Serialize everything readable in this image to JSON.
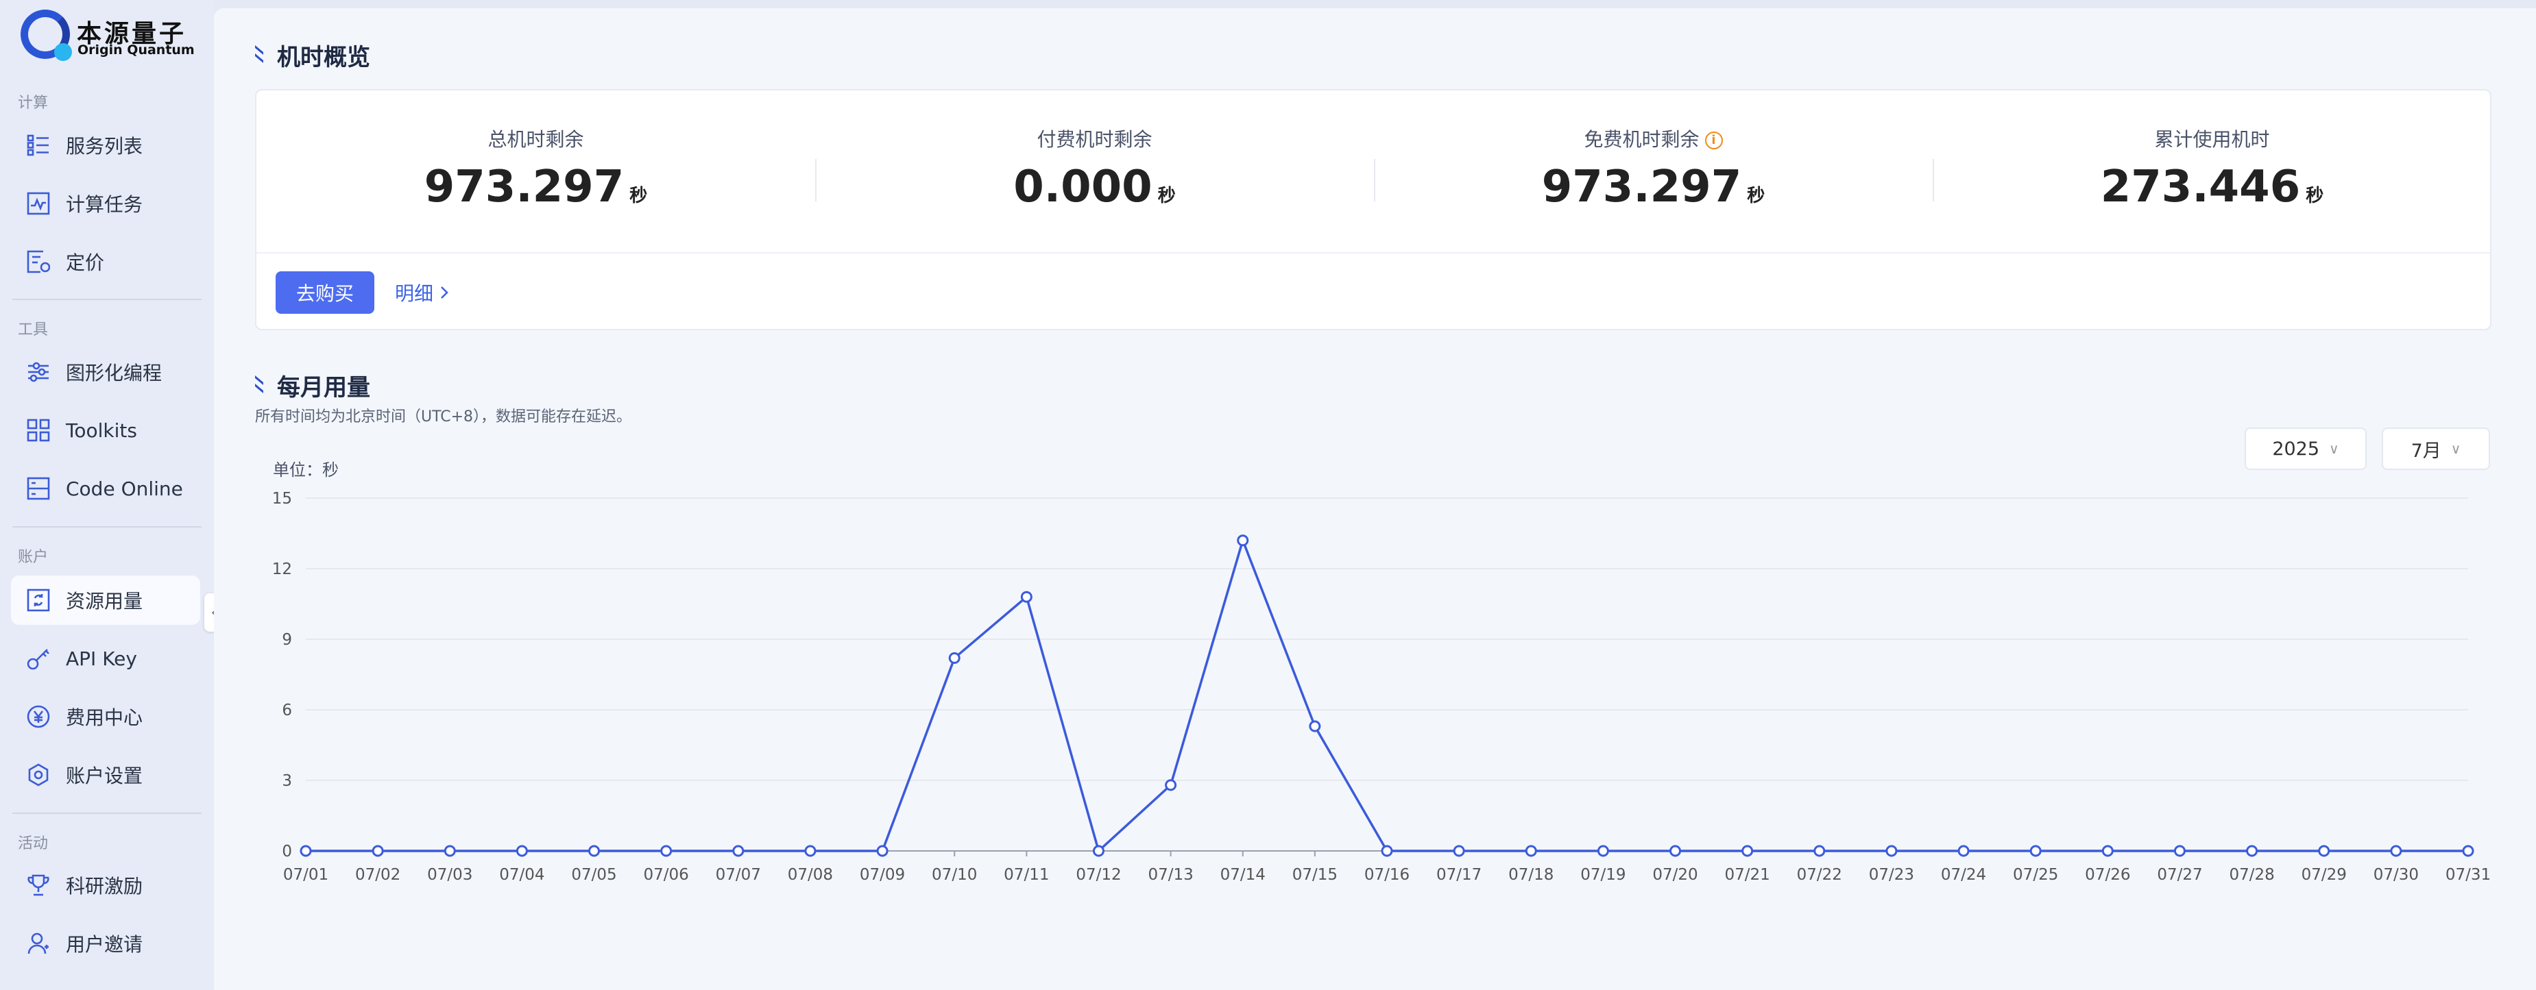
{
  "logo": {
    "name_cn": "本源量子",
    "name_en": "Origin Quantum"
  },
  "sidebar": {
    "sections": [
      {
        "label": "计算",
        "items": [
          {
            "label": "服务列表",
            "icon": "list-icon"
          },
          {
            "label": "计算任务",
            "icon": "activity-icon"
          },
          {
            "label": "定价",
            "icon": "price-icon"
          }
        ]
      },
      {
        "label": "工具",
        "items": [
          {
            "label": "图形化编程",
            "icon": "sliders-icon"
          },
          {
            "label": "Toolkits",
            "icon": "grid-icon"
          },
          {
            "label": "Code Online",
            "icon": "server-icon"
          }
        ]
      },
      {
        "label": "账户",
        "items": [
          {
            "label": "资源用量",
            "icon": "resource-icon",
            "active": true
          },
          {
            "label": "API Key",
            "icon": "key-icon"
          },
          {
            "label": "费用中心",
            "icon": "yen-icon"
          },
          {
            "label": "账户设置",
            "icon": "settings-icon"
          }
        ]
      },
      {
        "label": "活动",
        "items": [
          {
            "label": "科研激励",
            "icon": "trophy-icon"
          },
          {
            "label": "用户邀请",
            "icon": "user-icon"
          }
        ]
      }
    ]
  },
  "overview": {
    "title": "机时概览",
    "stats": [
      {
        "label": "总机时剩余",
        "value": "973.297",
        "unit": "秒"
      },
      {
        "label": "付费机时剩余",
        "value": "0.000",
        "unit": "秒"
      },
      {
        "label": "免费机时剩余",
        "value": "973.297",
        "unit": "秒",
        "info_icon": "info-icon"
      },
      {
        "label": "累计使用机时",
        "value": "273.446",
        "unit": "秒"
      }
    ],
    "buy_label": "去购买",
    "detail_label": "明细"
  },
  "monthly": {
    "title": "每月用量",
    "subtitle": "所有时间均为北京时间（UTC+8），数据可能存在延迟。",
    "year": "2025",
    "month": "7月",
    "unit_label": "单位：秒"
  },
  "colors": {
    "accent": "#4d6cf0",
    "line": "#3b5bdb",
    "title_mark": "#2e50c8",
    "warning": "#f08c1a"
  },
  "chart_data": {
    "type": "line",
    "x": [
      "07/01",
      "07/02",
      "07/03",
      "07/04",
      "07/05",
      "07/06",
      "07/07",
      "07/08",
      "07/09",
      "07/10",
      "07/11",
      "07/12",
      "07/13",
      "07/14",
      "07/15",
      "07/16",
      "07/17",
      "07/18",
      "07/19",
      "07/20",
      "07/21",
      "07/22",
      "07/23",
      "07/24",
      "07/25",
      "07/26",
      "07/27",
      "07/28",
      "07/29",
      "07/30",
      "07/31"
    ],
    "values": [
      0,
      0,
      0,
      0,
      0,
      0,
      0,
      0,
      0,
      8.2,
      10.8,
      0,
      2.8,
      13.2,
      5.3,
      0,
      0,
      0,
      0,
      0,
      0,
      0,
      0,
      0,
      0,
      0,
      0,
      0,
      0,
      0,
      0
    ],
    "yticks": [
      0,
      3,
      6,
      9,
      12,
      15
    ],
    "ylim": [
      0,
      15
    ],
    "ylabel": "单位：秒",
    "grid": true
  }
}
